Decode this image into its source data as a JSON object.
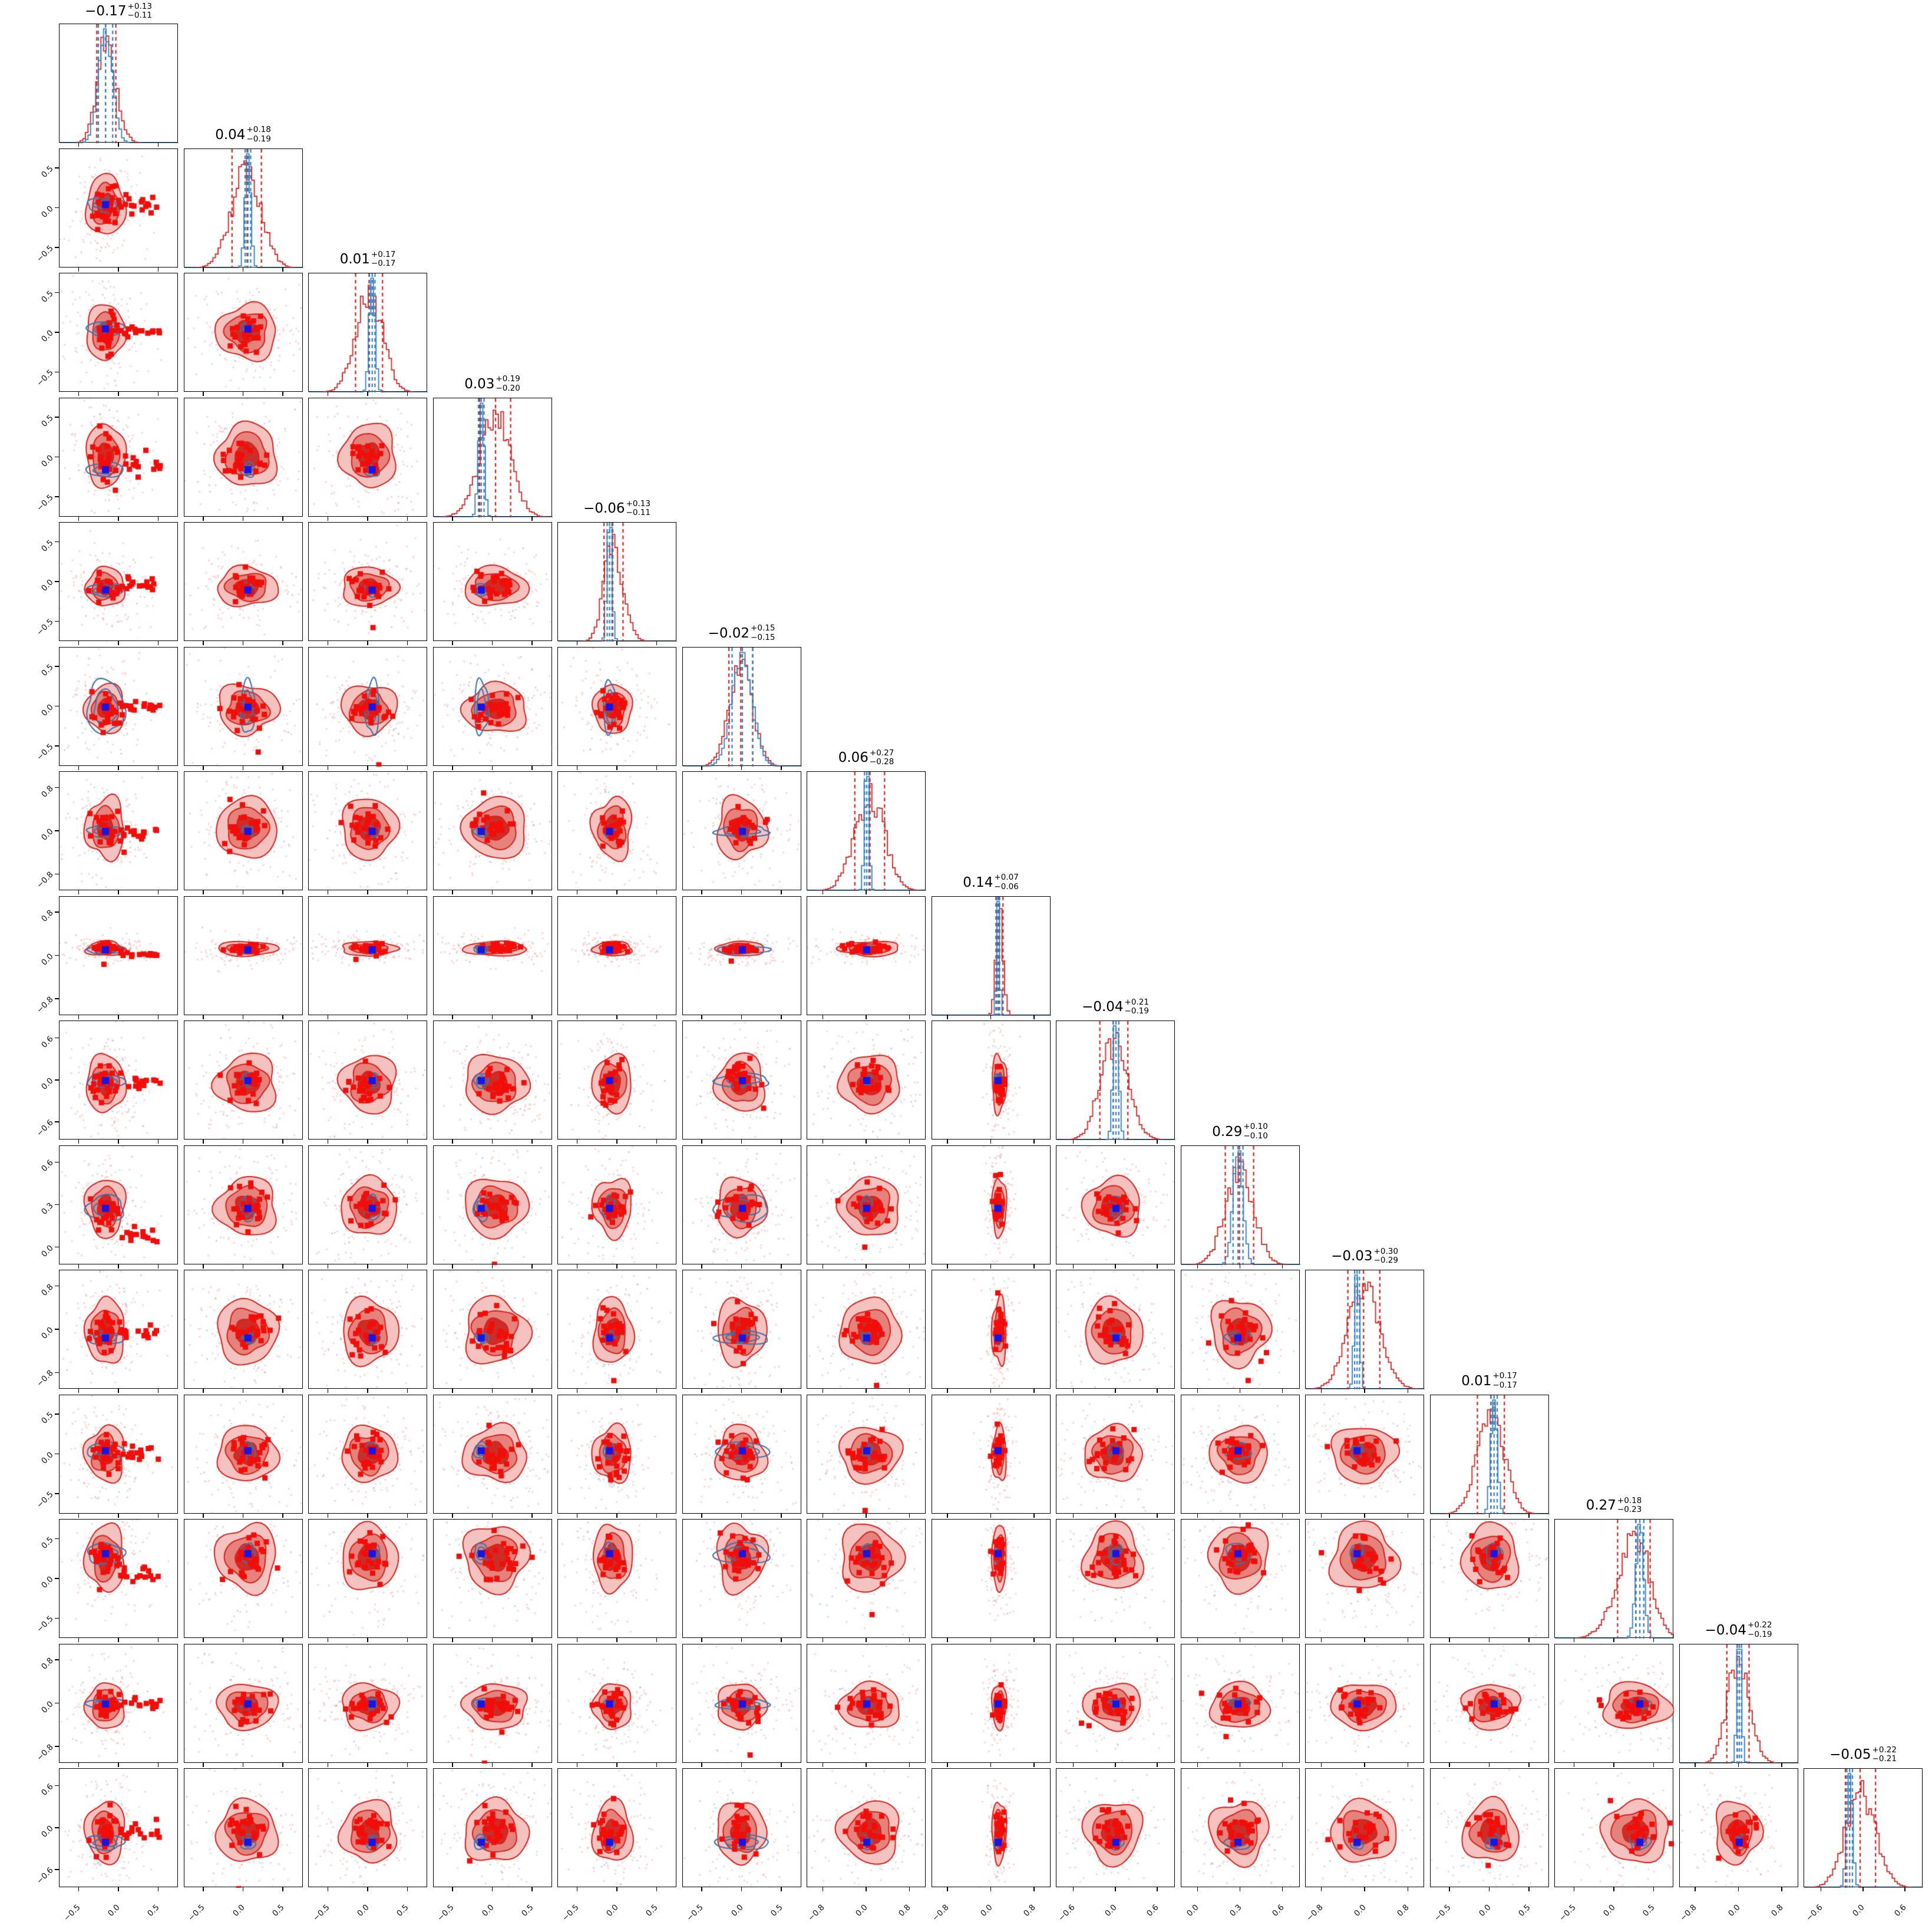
{
  "figure": {
    "kind": "corner-plot",
    "n_params": 15,
    "legend": {
      "posterior_color_name": "red",
      "reference_color_name": "blue",
      "truth_marker": "blue-square"
    }
  },
  "chart_data": {
    "type": "scatter",
    "subtype": "corner-triangle",
    "n_params": 15,
    "layout": {
      "grid": "lower-triangle",
      "rows": 15,
      "cols": 15,
      "diagonal": "1d-histograms",
      "offdiagonal": "2d-contours"
    },
    "colors": {
      "red_line": "#d8201c",
      "red_fill_light": "#f5c3bf",
      "red_fill_mid": "#e5827b",
      "red_fill_dark": "#ce2d27",
      "scatter_red": "rgba(242,120,120,0.30)",
      "scatter_blue": "rgba(130,170,225,0.45)",
      "marker_red": "#f30d08",
      "blue_contour": "#3b74ad",
      "blue_hist": "#2f7fc1",
      "truth_blue": "#1316e8",
      "axis": "#000000"
    },
    "params": [
      {
        "index": 1,
        "title_value": "−0.17",
        "title_plus": "+0.13",
        "title_minus": "−0.11",
        "median": -0.17,
        "sigma_plus": 0.13,
        "sigma_minus": 0.11,
        "truth": -0.17,
        "ref_sigma": 0.09,
        "ticks": [
          -0.5,
          0.0,
          0.5
        ],
        "tick_labels": [
          "−0.5",
          "0.0",
          "0.5"
        ],
        "range": [
          -0.75,
          0.75
        ]
      },
      {
        "index": 2,
        "title_value": "0.04",
        "title_plus": "+0.18",
        "title_minus": "−0.19",
        "median": 0.04,
        "sigma_plus": 0.18,
        "sigma_minus": 0.19,
        "truth": 0.05,
        "ref_sigma": 0.035,
        "ticks": [
          -0.5,
          0.0,
          0.5
        ],
        "tick_labels": [
          "−0.5",
          "0.0",
          "0.5"
        ],
        "range": [
          -0.75,
          0.75
        ]
      },
      {
        "index": 3,
        "title_value": "0.01",
        "title_plus": "+0.17",
        "title_minus": "−0.17",
        "median": 0.01,
        "sigma_plus": 0.17,
        "sigma_minus": 0.17,
        "truth": 0.05,
        "ref_sigma": 0.035,
        "ticks": [
          -0.5,
          0.0,
          0.5
        ],
        "tick_labels": [
          "−0.5",
          "0.0",
          "0.5"
        ],
        "range": [
          -0.75,
          0.75
        ]
      },
      {
        "index": 4,
        "title_value": "0.03",
        "title_plus": "+0.19",
        "title_minus": "−0.20",
        "median": 0.03,
        "sigma_plus": 0.19,
        "sigma_minus": 0.2,
        "truth": -0.15,
        "ref_sigma": 0.035,
        "ticks": [
          -0.5,
          0.0,
          0.5
        ],
        "tick_labels": [
          "−0.5",
          "0.0",
          "0.5"
        ],
        "range": [
          -0.75,
          0.75
        ]
      },
      {
        "index": 5,
        "title_value": "−0.06",
        "title_plus": "+0.13",
        "title_minus": "−0.11",
        "median": -0.06,
        "sigma_plus": 0.13,
        "sigma_minus": 0.11,
        "truth": -0.1,
        "ref_sigma": 0.03,
        "ticks": [
          -0.5,
          0.0,
          0.5
        ],
        "tick_labels": [
          "−0.5",
          "0.0",
          "0.5"
        ],
        "range": [
          -0.75,
          0.75
        ]
      },
      {
        "index": 6,
        "title_value": "−0.02",
        "title_plus": "+0.15",
        "title_minus": "−0.15",
        "median": -0.02,
        "sigma_plus": 0.15,
        "sigma_minus": 0.15,
        "truth": 0.0,
        "ref_sigma": 0.13,
        "ticks": [
          -0.5,
          0.0,
          0.5
        ],
        "tick_labels": [
          "−0.5",
          "0.0",
          "0.5"
        ],
        "range": [
          -0.75,
          0.75
        ]
      },
      {
        "index": 7,
        "title_value": "0.06",
        "title_plus": "+0.27",
        "title_minus": "−0.28",
        "median": 0.06,
        "sigma_plus": 0.27,
        "sigma_minus": 0.28,
        "truth": 0.0,
        "ref_sigma": 0.04,
        "ticks": [
          -0.8,
          0.0,
          0.8
        ],
        "tick_labels": [
          "−0.8",
          "0.0",
          "0.8"
        ],
        "range": [
          -1.1,
          1.1
        ]
      },
      {
        "index": 8,
        "title_value": "0.14",
        "title_plus": "+0.07",
        "title_minus": "−0.06",
        "median": 0.14,
        "sigma_plus": 0.07,
        "sigma_minus": 0.06,
        "truth": 0.12,
        "ref_sigma": 0.028,
        "ticks": [
          -0.8,
          0.0,
          0.8
        ],
        "tick_labels": [
          "−0.8",
          "0.0",
          "0.8"
        ],
        "range": [
          -1.1,
          1.1
        ]
      },
      {
        "index": 9,
        "title_value": "−0.04",
        "title_plus": "+0.21",
        "title_minus": "−0.19",
        "median": -0.04,
        "sigma_plus": 0.21,
        "sigma_minus": 0.19,
        "truth": 0.0,
        "ref_sigma": 0.04,
        "ticks": [
          -0.6,
          0.0,
          0.6
        ],
        "tick_labels": [
          "−0.6",
          "0.0",
          "0.6"
        ],
        "range": [
          -0.85,
          0.85
        ]
      },
      {
        "index": 10,
        "title_value": "0.29",
        "title_plus": "+0.10",
        "title_minus": "−0.10",
        "median": 0.29,
        "sigma_plus": 0.1,
        "sigma_minus": 0.1,
        "truth": 0.28,
        "ref_sigma": 0.035,
        "ticks": [
          0.0,
          0.3,
          0.6
        ],
        "tick_labels": [
          "0.0",
          "0.3",
          "0.6"
        ],
        "range": [
          -0.12,
          0.72
        ]
      },
      {
        "index": 11,
        "title_value": "−0.03",
        "title_plus": "+0.30",
        "title_minus": "−0.29",
        "median": -0.03,
        "sigma_plus": 0.3,
        "sigma_minus": 0.29,
        "truth": -0.15,
        "ref_sigma": 0.045,
        "ticks": [
          -0.8,
          0.0,
          0.8
        ],
        "tick_labels": [
          "−0.8",
          "0.0",
          "0.8"
        ],
        "range": [
          -1.1,
          1.1
        ]
      },
      {
        "index": 12,
        "title_value": "0.01",
        "title_plus": "+0.17",
        "title_minus": "−0.17",
        "median": 0.01,
        "sigma_plus": 0.17,
        "sigma_minus": 0.17,
        "truth": 0.05,
        "ref_sigma": 0.04,
        "ticks": [
          -0.5,
          0.0,
          0.5
        ],
        "tick_labels": [
          "−0.5",
          "0.0",
          "0.5"
        ],
        "range": [
          -0.75,
          0.75
        ]
      },
      {
        "index": 13,
        "title_value": "0.27",
        "title_plus": "+0.18",
        "title_minus": "−0.23",
        "median": 0.27,
        "sigma_plus": 0.18,
        "sigma_minus": 0.23,
        "truth": 0.32,
        "ref_sigma": 0.05,
        "ticks": [
          -0.5,
          0.0,
          0.5
        ],
        "tick_labels": [
          "−0.5",
          "0.0",
          "0.5"
        ],
        "range": [
          -0.75,
          0.75
        ]
      },
      {
        "index": 14,
        "title_value": "−0.04",
        "title_plus": "+0.22",
        "title_minus": "−0.19",
        "median": -0.04,
        "sigma_plus": 0.22,
        "sigma_minus": 0.19,
        "truth": 0.0,
        "ref_sigma": 0.04,
        "ticks": [
          -0.8,
          0.0,
          0.8
        ],
        "tick_labels": [
          "−0.8",
          "0.0",
          "0.8"
        ],
        "range": [
          -1.1,
          1.1
        ]
      },
      {
        "index": 15,
        "title_value": "−0.05",
        "title_plus": "+0.22",
        "title_minus": "−0.21",
        "median": -0.05,
        "sigma_plus": 0.22,
        "sigma_minus": 0.21,
        "truth": -0.2,
        "ref_sigma": 0.04,
        "ticks": [
          -0.6,
          0.0,
          0.6
        ],
        "tick_labels": [
          "−0.6",
          "0.0",
          "0.6"
        ],
        "range": [
          -0.85,
          0.85
        ]
      }
    ]
  }
}
